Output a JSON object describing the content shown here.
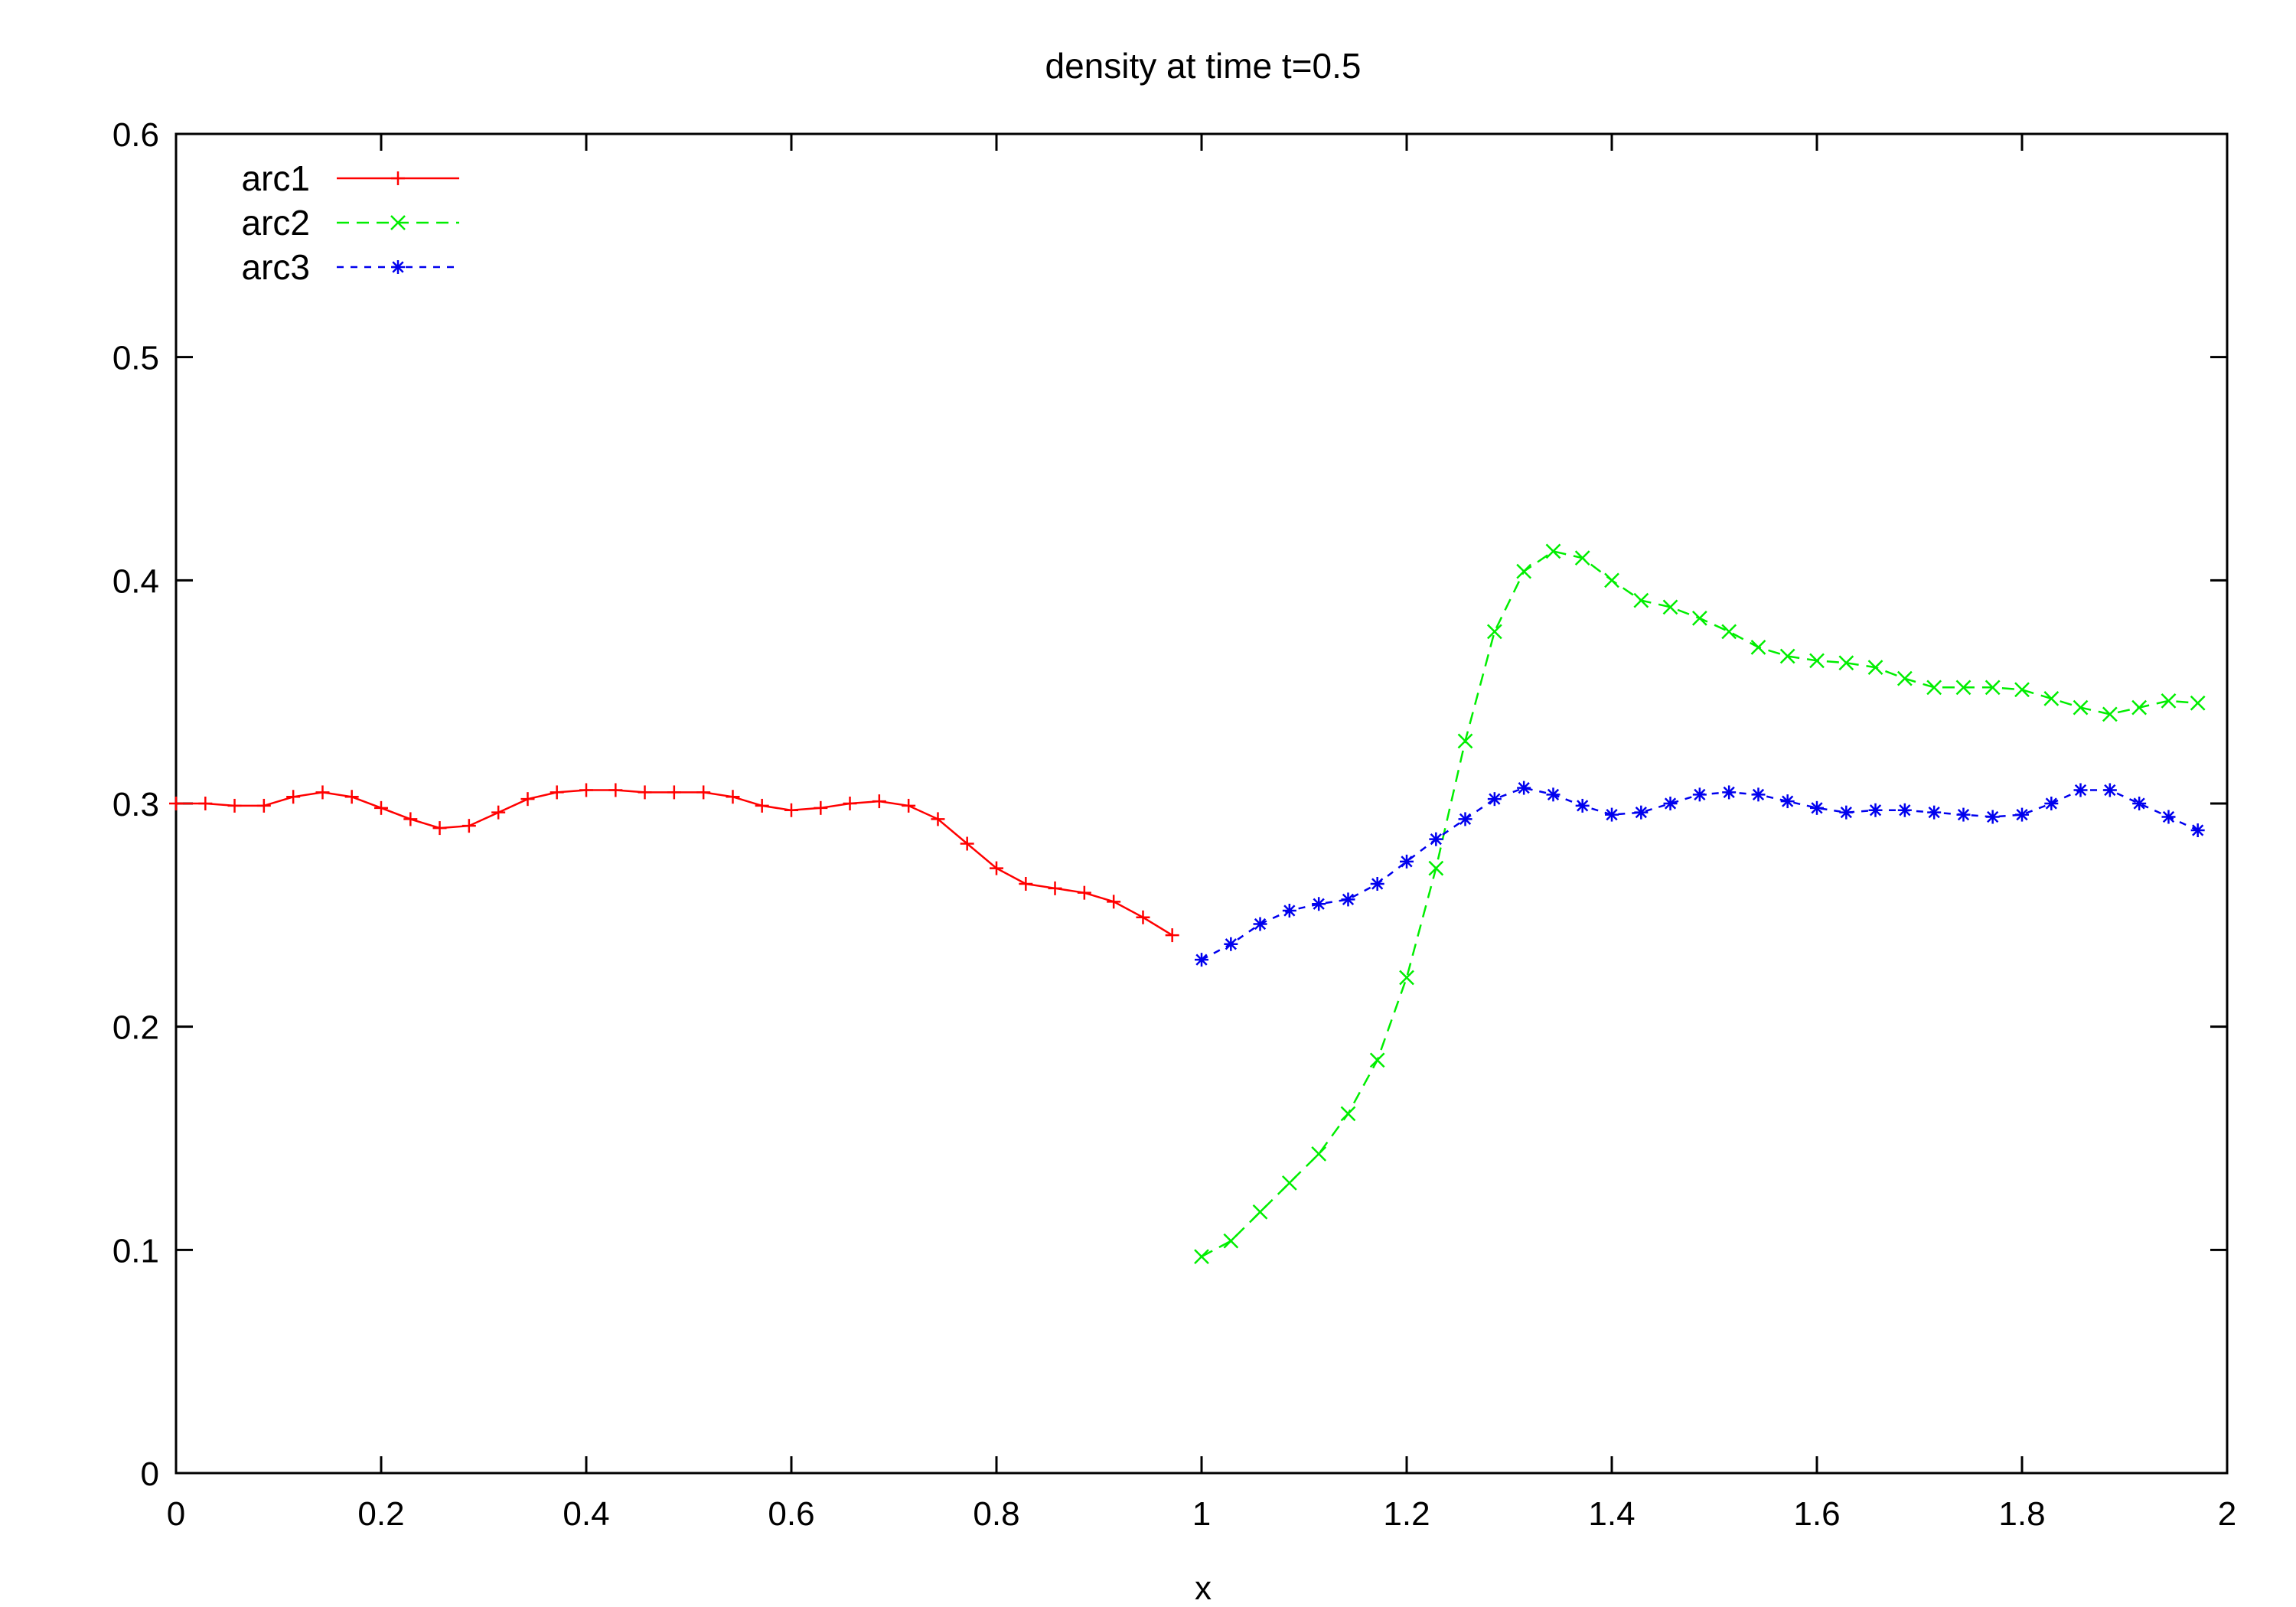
{
  "chart_data": {
    "type": "line",
    "title": "density at time t=0.5",
    "xlabel": "x",
    "ylabel": "",
    "xlim": [
      0,
      2
    ],
    "ylim": [
      0,
      0.6
    ],
    "xticks": [
      0,
      0.2,
      0.4,
      0.6,
      0.8,
      1,
      1.2,
      1.4,
      1.6,
      1.8,
      2
    ],
    "xtick_labels": [
      "0",
      "0.2",
      "0.4",
      "0.6",
      "0.8",
      "1",
      "1.2",
      "1.4",
      "1.6",
      "1.8",
      "2"
    ],
    "yticks": [
      0,
      0.1,
      0.2,
      0.3,
      0.4,
      0.5,
      0.6
    ],
    "ytick_labels": [
      "0",
      "0.1",
      "0.2",
      "0.3",
      "0.4",
      "0.5",
      "0.6"
    ],
    "legend_position": "top-left",
    "grid": false,
    "series": [
      {
        "name": "arc1",
        "color": "#ff0000",
        "marker": "plus",
        "dash": "solid",
        "x": [
          0.0,
          0.0286,
          0.0571,
          0.0857,
          0.1143,
          0.1429,
          0.1714,
          0.2,
          0.2286,
          0.2571,
          0.2857,
          0.3143,
          0.3429,
          0.3714,
          0.4,
          0.4286,
          0.4571,
          0.4857,
          0.5143,
          0.5429,
          0.5714,
          0.6,
          0.6286,
          0.6571,
          0.6857,
          0.7143,
          0.7429,
          0.7714,
          0.8,
          0.8286,
          0.8571,
          0.8857,
          0.9143,
          0.9429,
          0.9714
        ],
        "y": [
          0.3,
          0.3,
          0.299,
          0.299,
          0.303,
          0.305,
          0.303,
          0.298,
          0.293,
          0.289,
          0.29,
          0.296,
          0.302,
          0.305,
          0.306,
          0.306,
          0.305,
          0.305,
          0.305,
          0.303,
          0.299,
          0.297,
          0.298,
          0.3,
          0.301,
          0.299,
          0.293,
          0.282,
          0.271,
          0.264,
          0.262,
          0.26,
          0.256,
          0.249,
          0.241
        ]
      },
      {
        "name": "arc2",
        "color": "#00ee00",
        "marker": "cross",
        "dash": "dashed",
        "x": [
          1.0,
          1.0286,
          1.0571,
          1.0857,
          1.1143,
          1.1429,
          1.1714,
          1.2,
          1.2286,
          1.2571,
          1.2857,
          1.3143,
          1.3429,
          1.3714,
          1.4,
          1.4286,
          1.4571,
          1.4857,
          1.5143,
          1.5429,
          1.5714,
          1.6,
          1.6286,
          1.6571,
          1.6857,
          1.7143,
          1.7429,
          1.7714,
          1.8,
          1.8286,
          1.8571,
          1.8857,
          1.9143,
          1.9429,
          1.9714
        ],
        "y": [
          0.097,
          0.104,
          0.117,
          0.13,
          0.143,
          0.161,
          0.185,
          0.222,
          0.271,
          0.328,
          0.377,
          0.404,
          0.413,
          0.41,
          0.4,
          0.391,
          0.388,
          0.383,
          0.377,
          0.37,
          0.366,
          0.364,
          0.363,
          0.361,
          0.356,
          0.352,
          0.352,
          0.352,
          0.351,
          0.347,
          0.343,
          0.34,
          0.343,
          0.346,
          0.345
        ]
      },
      {
        "name": "arc3",
        "color": "#0000ee",
        "marker": "star",
        "dash": "dotted",
        "x": [
          1.0,
          1.0286,
          1.0571,
          1.0857,
          1.1143,
          1.1429,
          1.1714,
          1.2,
          1.2286,
          1.2571,
          1.2857,
          1.3143,
          1.3429,
          1.3714,
          1.4,
          1.4286,
          1.4571,
          1.4857,
          1.5143,
          1.5429,
          1.5714,
          1.6,
          1.6286,
          1.6571,
          1.6857,
          1.7143,
          1.7429,
          1.7714,
          1.8,
          1.8286,
          1.8571,
          1.8857,
          1.9143,
          1.9429,
          1.9714
        ],
        "y": [
          0.23,
          0.237,
          0.246,
          0.252,
          0.255,
          0.257,
          0.264,
          0.274,
          0.284,
          0.293,
          0.302,
          0.307,
          0.304,
          0.299,
          0.295,
          0.296,
          0.3,
          0.304,
          0.305,
          0.304,
          0.301,
          0.298,
          0.296,
          0.297,
          0.297,
          0.296,
          0.295,
          0.294,
          0.295,
          0.3,
          0.306,
          0.306,
          0.3,
          0.294,
          0.288
        ]
      }
    ]
  }
}
